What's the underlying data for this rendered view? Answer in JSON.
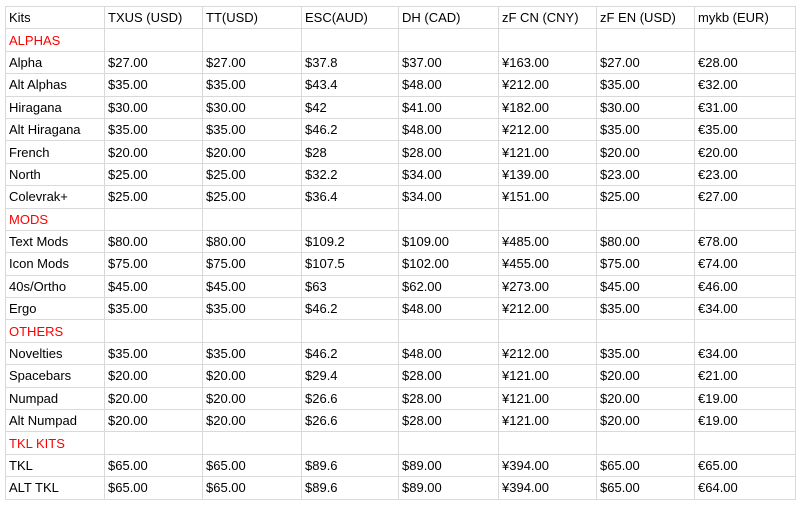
{
  "table": {
    "headers": [
      "Kits",
      "TXUS (USD)",
      "TT(USD)",
      "ESC(AUD)",
      "DH (CAD)",
      "zF CN (CNY)",
      "zF EN (USD)",
      "mykb (EUR)"
    ],
    "section_color": "#ff0000",
    "rows": [
      {
        "section": "ALPHAS"
      },
      {
        "cells": [
          "Alpha",
          "$27.00",
          "$27.00",
          "$37.8",
          "$37.00",
          "¥163.00",
          "$27.00",
          "€28.00"
        ]
      },
      {
        "cells": [
          "Alt Alphas",
          "$35.00",
          "$35.00",
          "$43.4",
          "$48.00",
          "¥212.00",
          "$35.00",
          "€32.00"
        ]
      },
      {
        "cells": [
          "Hiragana",
          "$30.00",
          "$30.00",
          "$42",
          "$41.00",
          "¥182.00",
          "$30.00",
          "€31.00"
        ]
      },
      {
        "cells": [
          "Alt Hiragana",
          "$35.00",
          "$35.00",
          "$46.2",
          "$48.00",
          "¥212.00",
          "$35.00",
          "€35.00"
        ]
      },
      {
        "cells": [
          "French",
          "$20.00",
          "$20.00",
          "$28",
          "$28.00",
          "¥121.00",
          "$20.00",
          "€20.00"
        ]
      },
      {
        "cells": [
          "North",
          "$25.00",
          "$25.00",
          "$32.2",
          "$34.00",
          "¥139.00",
          "$23.00",
          "€23.00"
        ]
      },
      {
        "cells": [
          "Colevrak+",
          "$25.00",
          "$25.00",
          "$36.4",
          "$34.00",
          "¥151.00",
          "$25.00",
          "€27.00"
        ]
      },
      {
        "section": "MODS"
      },
      {
        "cells": [
          "Text Mods",
          "$80.00",
          "$80.00",
          "$109.2",
          "$109.00",
          "¥485.00",
          "$80.00",
          "€78.00"
        ]
      },
      {
        "cells": [
          "Icon Mods",
          "$75.00",
          "$75.00",
          "$107.5",
          "$102.00",
          "¥455.00",
          "$75.00",
          "€74.00"
        ]
      },
      {
        "cells": [
          "40s/Ortho",
          "$45.00",
          "$45.00",
          "$63",
          "$62.00",
          "¥273.00",
          "$45.00",
          "€46.00"
        ]
      },
      {
        "cells": [
          "Ergo",
          "$35.00",
          "$35.00",
          "$46.2",
          "$48.00",
          "¥212.00",
          "$35.00",
          "€34.00"
        ]
      },
      {
        "section": "OTHERS"
      },
      {
        "cells": [
          "Novelties",
          "$35.00",
          "$35.00",
          "$46.2",
          "$48.00",
          "¥212.00",
          "$35.00",
          "€34.00"
        ]
      },
      {
        "cells": [
          "Spacebars",
          "$20.00",
          "$20.00",
          "$29.4",
          "$28.00",
          "¥121.00",
          "$20.00",
          "€21.00"
        ]
      },
      {
        "cells": [
          "Numpad",
          "$20.00",
          "$20.00",
          "$26.6",
          "$28.00",
          "¥121.00",
          "$20.00",
          "€19.00"
        ]
      },
      {
        "cells": [
          "Alt Numpad",
          "$20.00",
          "$20.00",
          "$26.6",
          "$28.00",
          "¥121.00",
          "$20.00",
          "€19.00"
        ]
      },
      {
        "section": "TKL KITS"
      },
      {
        "cells": [
          "TKL",
          "$65.00",
          "$65.00",
          "$89.6",
          "$89.00",
          "¥394.00",
          "$65.00",
          "€65.00"
        ]
      },
      {
        "cells": [
          "ALT TKL",
          "$65.00",
          "$65.00",
          "$89.6",
          "$89.00",
          "¥394.00",
          "$65.00",
          "€64.00"
        ]
      }
    ]
  }
}
